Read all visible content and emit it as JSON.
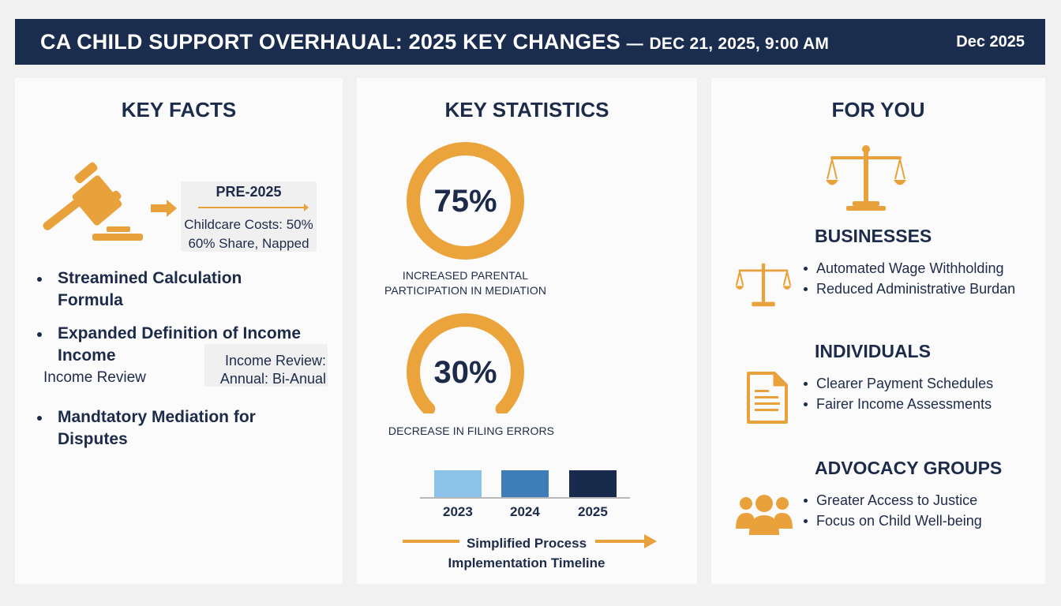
{
  "header": {
    "title": "CA CHILD SUPPORT OVERHAUAL: 2025 KEY CHANGES",
    "separator": "—",
    "timestamp": "DEC 21, 2025, 9:00 AM",
    "date": "Dec 2025"
  },
  "key_facts": {
    "heading": "KEY FACTS",
    "pre_box": {
      "title": "PRE-2025",
      "line1": "Childcare Costs: 50%",
      "line2": "60% Share, Napped"
    },
    "bullets": [
      {
        "line1": "Streamined Calculation",
        "line2": "Formula"
      },
      {
        "line1": "Expanded Definition of Income",
        "line2": "Income"
      },
      {
        "line1": "Mandtatory Mediation for",
        "line2": "Disputes"
      }
    ],
    "income_review_label": "Income Review",
    "review_box": {
      "line1": "Income Review:",
      "line2": "Annual: Bi-Anual"
    }
  },
  "key_statistics": {
    "heading": "KEY STATISTICS",
    "stat1": {
      "value": "75%",
      "percent": 100,
      "label_line1": "INCREASED PARENTAL",
      "label_line2": "PARTICIPATION IN MEDIATION"
    },
    "stat2": {
      "value": "30%",
      "percent": 75,
      "label": "DECREASE IN FILING ERRORS"
    },
    "years": [
      "2023",
      "2024",
      "2025"
    ],
    "year_colors": [
      "#8cc3e8",
      "#3f7db8",
      "#182b4c"
    ],
    "timeline_line1": "Simplified Process",
    "timeline_line2": "Implementation Timeline"
  },
  "for_you": {
    "heading": "FOR YOU",
    "businesses": {
      "title": "BUSINESSES",
      "items": [
        "Automated Wage Withholding",
        "Reduced Administrative Burdan"
      ]
    },
    "individuals": {
      "title": "INDIVIDUALS",
      "items": [
        "Clearer Payment Schedules",
        "Fairer Income Assessments"
      ]
    },
    "advocacy": {
      "title": "ADVOCACY GROUPS",
      "items": [
        "Greater Access to Justice",
        "Focus on Child Well-being"
      ]
    }
  },
  "colors": {
    "navy": "#1b2d4f",
    "accent": "#e9a23b",
    "panel": "#fbfbfb"
  }
}
